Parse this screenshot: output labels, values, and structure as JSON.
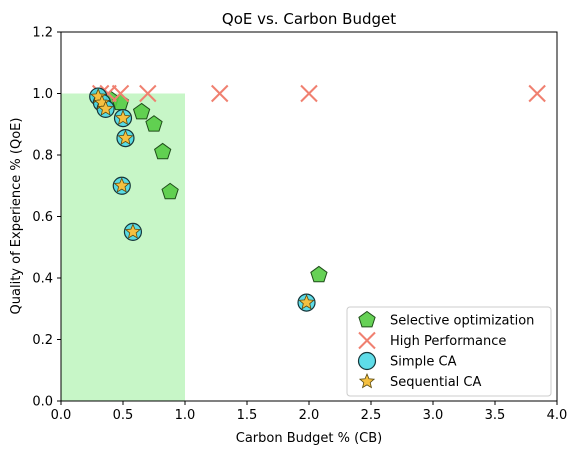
{
  "chart_data": {
    "type": "scatter",
    "title": "QoE vs. Carbon Budget",
    "xlabel": "Carbon Budget % (CB)",
    "ylabel": "Quality of Experience % (QoE)",
    "xlim": [
      0,
      4
    ],
    "ylim": [
      0,
      1.2
    ],
    "xticks": [
      "0.0",
      "0.5",
      "1.0",
      "1.5",
      "2.0",
      "2.5",
      "3.0",
      "3.5",
      "4.0"
    ],
    "yticks": [
      "0.0",
      "0.2",
      "0.4",
      "0.6",
      "0.8",
      "1.0",
      "1.2"
    ],
    "grid": false,
    "legend_position": "lower-right",
    "region": {
      "x": [
        0,
        1
      ],
      "y": [
        0,
        1
      ],
      "color": "#90ee90"
    },
    "series": [
      {
        "name": "Selective optimization",
        "marker": "pentagon",
        "color": "#55cc44",
        "points": [
          {
            "x": 0.31,
            "y": 0.99
          },
          {
            "x": 0.4,
            "y": 0.98
          },
          {
            "x": 0.48,
            "y": 0.97
          },
          {
            "x": 0.65,
            "y": 0.94
          },
          {
            "x": 0.75,
            "y": 0.9
          },
          {
            "x": 0.82,
            "y": 0.81
          },
          {
            "x": 0.88,
            "y": 0.68
          },
          {
            "x": 2.08,
            "y": 0.41
          }
        ]
      },
      {
        "name": "High Performance",
        "marker": "x",
        "color": "#f08070",
        "points": [
          {
            "x": 0.32,
            "y": 1.0
          },
          {
            "x": 0.38,
            "y": 1.0
          },
          {
            "x": 0.48,
            "y": 1.0
          },
          {
            "x": 0.7,
            "y": 1.0
          },
          {
            "x": 1.28,
            "y": 1.0
          },
          {
            "x": 2.0,
            "y": 1.0
          },
          {
            "x": 3.84,
            "y": 1.0
          }
        ]
      },
      {
        "name": "Simple CA",
        "marker": "circle",
        "color": "#4dd8e6",
        "points": [
          {
            "x": 0.3,
            "y": 0.99
          },
          {
            "x": 0.33,
            "y": 0.97
          },
          {
            "x": 0.36,
            "y": 0.95
          },
          {
            "x": 0.5,
            "y": 0.92
          },
          {
            "x": 0.52,
            "y": 0.855
          },
          {
            "x": 0.49,
            "y": 0.7
          },
          {
            "x": 0.58,
            "y": 0.55
          },
          {
            "x": 1.98,
            "y": 0.32
          }
        ]
      },
      {
        "name": "Sequential CA",
        "marker": "star",
        "color": "#f5c040",
        "points": [
          {
            "x": 0.3,
            "y": 0.99
          },
          {
            "x": 0.33,
            "y": 0.97
          },
          {
            "x": 0.36,
            "y": 0.95
          },
          {
            "x": 0.5,
            "y": 0.92
          },
          {
            "x": 0.52,
            "y": 0.855
          },
          {
            "x": 0.49,
            "y": 0.7
          },
          {
            "x": 0.58,
            "y": 0.55
          },
          {
            "x": 1.98,
            "y": 0.32
          }
        ]
      }
    ]
  }
}
